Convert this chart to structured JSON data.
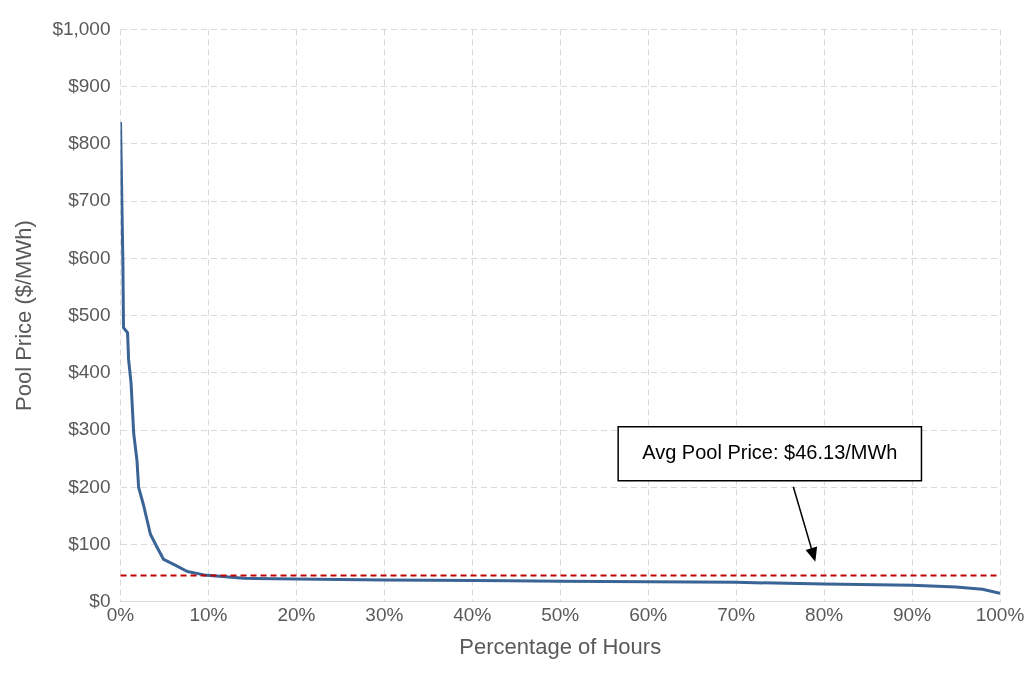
{
  "chart_data": {
    "type": "line",
    "xlabel": "Percentage of Hours",
    "ylabel": "Pool Price ($/MWh)",
    "series": [
      {
        "color": "#3a6496",
        "x": [
          0,
          0.27,
          0.34,
          0.8,
          0.92,
          1.2,
          1.5,
          1.87,
          2.06,
          2.6,
          3.4,
          4.2,
          4.9,
          6.1,
          7.6,
          9.5,
          14,
          20,
          30,
          40,
          50,
          60,
          70,
          80,
          90,
          95,
          98,
          100
        ],
        "values": [
          838,
          594,
          479,
          470,
          423,
          382,
          294,
          247,
          200,
          170,
          118,
          94,
          74,
          65,
          53,
          47,
          41,
          40,
          38,
          37,
          36,
          35,
          34,
          31,
          29,
          26,
          22,
          15
        ]
      }
    ],
    "xlim": [
      0,
      100
    ],
    "xticks": [
      {
        "value": 0,
        "label": "0%"
      },
      {
        "value": 10,
        "label": "10%"
      },
      {
        "value": 20,
        "label": "20%"
      },
      {
        "value": 30,
        "label": "30%"
      },
      {
        "value": 40,
        "label": "40%"
      },
      {
        "value": 50,
        "label": "50%"
      },
      {
        "value": 60,
        "label": "60%"
      },
      {
        "value": 70,
        "label": "70%"
      },
      {
        "value": 80,
        "label": "80%"
      },
      {
        "value": 90,
        "label": "90%"
      },
      {
        "value": 100,
        "label": "100%"
      }
    ],
    "ylim": [
      0,
      1000
    ],
    "yticks": [
      {
        "value": 0,
        "label": "$0"
      },
      {
        "value": 100,
        "label": "$100"
      },
      {
        "value": 200,
        "label": "$200"
      },
      {
        "value": 300,
        "label": "$300"
      },
      {
        "value": 400,
        "label": "$400"
      },
      {
        "value": 500,
        "label": "$500"
      },
      {
        "value": 600,
        "label": "$600"
      },
      {
        "value": 700,
        "label": "$700"
      },
      {
        "value": 800,
        "label": "$800"
      },
      {
        "value": 900,
        "label": "$900"
      },
      {
        "value": 1000,
        "label": "$1,000"
      }
    ],
    "ref_lines": [
      {
        "axis": "y",
        "value": 46.13,
        "color": "#c00000",
        "line_style": "dashed"
      }
    ],
    "annotations": [
      "Avg Pool Price: $46.13/MWh"
    ],
    "grid": true,
    "legend": false,
    "marker": "none",
    "line_style": "solid"
  }
}
